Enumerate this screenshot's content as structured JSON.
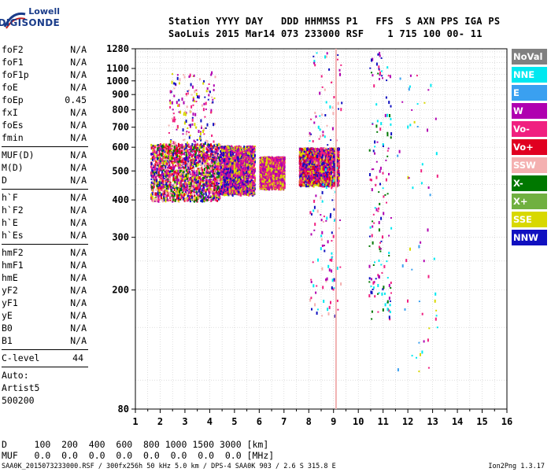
{
  "logo": {
    "top_text": "Lowell",
    "main_text": "DIGISONDE"
  },
  "header": {
    "line1": "Station YYYY DAY   DDD HHMMSS P1   FFS  S AXN PPS IGA PS",
    "line2": "SaoLuis 2015 Mar14 073 233000 RSF    1 715 100 00- 11"
  },
  "params": {
    "group1": [
      {
        "name": "foF2",
        "value": "N/A"
      },
      {
        "name": "foF1",
        "value": "N/A"
      },
      {
        "name": "foF1p",
        "value": "N/A"
      },
      {
        "name": "foE",
        "value": "N/A"
      },
      {
        "name": "foEp",
        "value": "0.45"
      },
      {
        "name": "fxI",
        "value": "N/A"
      },
      {
        "name": "foEs",
        "value": "N/A"
      },
      {
        "name": "fmin",
        "value": "N/A"
      }
    ],
    "group2": [
      {
        "name": "MUF(D)",
        "value": "N/A"
      },
      {
        "name": "M(D)",
        "value": "N/A"
      },
      {
        "name": "D",
        "value": "N/A"
      }
    ],
    "group3": [
      {
        "name": "h`F",
        "value": "N/A"
      },
      {
        "name": "h`F2",
        "value": "N/A"
      },
      {
        "name": "h`E",
        "value": "N/A"
      },
      {
        "name": "h`Es",
        "value": "N/A"
      }
    ],
    "group4": [
      {
        "name": "hmF2",
        "value": "N/A"
      },
      {
        "name": "hmF1",
        "value": "N/A"
      },
      {
        "name": "hmE",
        "value": "N/A"
      },
      {
        "name": "yF2",
        "value": "N/A"
      },
      {
        "name": "yF1",
        "value": "N/A"
      },
      {
        "name": "yE",
        "value": "N/A"
      },
      {
        "name": "B0",
        "value": "N/A"
      },
      {
        "name": "B1",
        "value": "N/A"
      }
    ],
    "clevel": {
      "name": "C-level",
      "value": "44"
    },
    "auto_lines": [
      "Auto:",
      "Artist5",
      "500200"
    ]
  },
  "legend": [
    {
      "label": "NoVal",
      "color": "#808080"
    },
    {
      "label": "NNE",
      "color": "#00e8f0"
    },
    {
      "label": "E",
      "color": "#3aa0f0"
    },
    {
      "label": "W",
      "color": "#b000b0"
    },
    {
      "label": "Vo-",
      "color": "#f02080"
    },
    {
      "label": "Vo+",
      "color": "#e00020"
    },
    {
      "label": "SSW",
      "color": "#f4b0b0"
    },
    {
      "label": "X-",
      "color": "#007800"
    },
    {
      "label": "X+",
      "color": "#70b040"
    },
    {
      "label": "SSE",
      "color": "#d8d800"
    },
    {
      "label": "NNW",
      "color": "#1010c0"
    }
  ],
  "chart_data": {
    "type": "scatter",
    "xlabel": "",
    "ylabel": "",
    "xlim": [
      1,
      16
    ],
    "ylim": [
      80,
      1280
    ],
    "y_scale": "log",
    "grid": true,
    "x_ticks": [
      1,
      2,
      3,
      4,
      5,
      6,
      7,
      8,
      9,
      10,
      11,
      12,
      13,
      14,
      15,
      16
    ],
    "y_ticks": [
      80,
      200,
      300,
      400,
      500,
      600,
      700,
      800,
      900,
      1000,
      1100,
      1280
    ],
    "vertical_lines": [
      9.1
    ],
    "clusters": [
      {
        "name": "F-trace",
        "x_range": [
          1.6,
          4.4
        ],
        "h_range": [
          400,
          620
        ],
        "color_codes": [
          "Vo-",
          "W",
          "NNW",
          "SSE",
          "Vo+",
          "X-",
          "SSW"
        ],
        "density": "high"
      },
      {
        "name": "F-trace",
        "x_range": [
          4.4,
          5.8
        ],
        "h_range": [
          420,
          610
        ],
        "color_codes": [
          "Vo-",
          "W",
          "NNW",
          "SSE"
        ],
        "density": "high"
      },
      {
        "name": "F-trace",
        "x_range": [
          6.0,
          7.0
        ],
        "h_range": [
          440,
          560
        ],
        "color_codes": [
          "Vo-",
          "W",
          "SSE"
        ],
        "density": "high"
      },
      {
        "name": "F-trace",
        "x_range": [
          7.6,
          9.2
        ],
        "h_range": [
          450,
          600
        ],
        "color_codes": [
          "Vo-",
          "W",
          "Vo+",
          "SSE",
          "NNW"
        ],
        "density": "high"
      },
      {
        "name": "spread",
        "x_range": [
          2.3,
          4.2
        ],
        "h_range": [
          620,
          1080
        ],
        "color_codes": [
          "NNW",
          "W",
          "SSE",
          "Vo-",
          "SSW"
        ],
        "density": "low"
      },
      {
        "name": "column",
        "x_range": [
          8.0,
          9.3
        ],
        "h_range": [
          160,
          1280
        ],
        "color_codes": [
          "SSW",
          "Vo-",
          "W",
          "NNW",
          "NNE"
        ],
        "density": "low"
      },
      {
        "name": "column",
        "x_range": [
          10.4,
          11.3
        ],
        "h_range": [
          160,
          1280
        ],
        "color_codes": [
          "W",
          "NNE",
          "Vo-",
          "NNW",
          "X-"
        ],
        "density": "low"
      },
      {
        "name": "scatter",
        "x_range": [
          11.5,
          13.2
        ],
        "h_range": [
          100,
          1200
        ],
        "color_codes": [
          "NNE",
          "E",
          "Vo-",
          "W",
          "SSE"
        ],
        "density": "sparse"
      }
    ]
  },
  "footer": {
    "d_row": "D     100  200  400  600  800 1000 1500 3000 [km]",
    "muf_row": "MUF   0.0  0.0  0.0  0.0  0.0  0.0  0.0  0.0 [MHz]",
    "filename": "SAA0K_2015073233000.RSF / 300fx256h 50 kHz 5.0 km / DPS-4 SAA0K 903 / 2.6 S 315.8 E",
    "version": "Ion2Png 1.3.17"
  }
}
